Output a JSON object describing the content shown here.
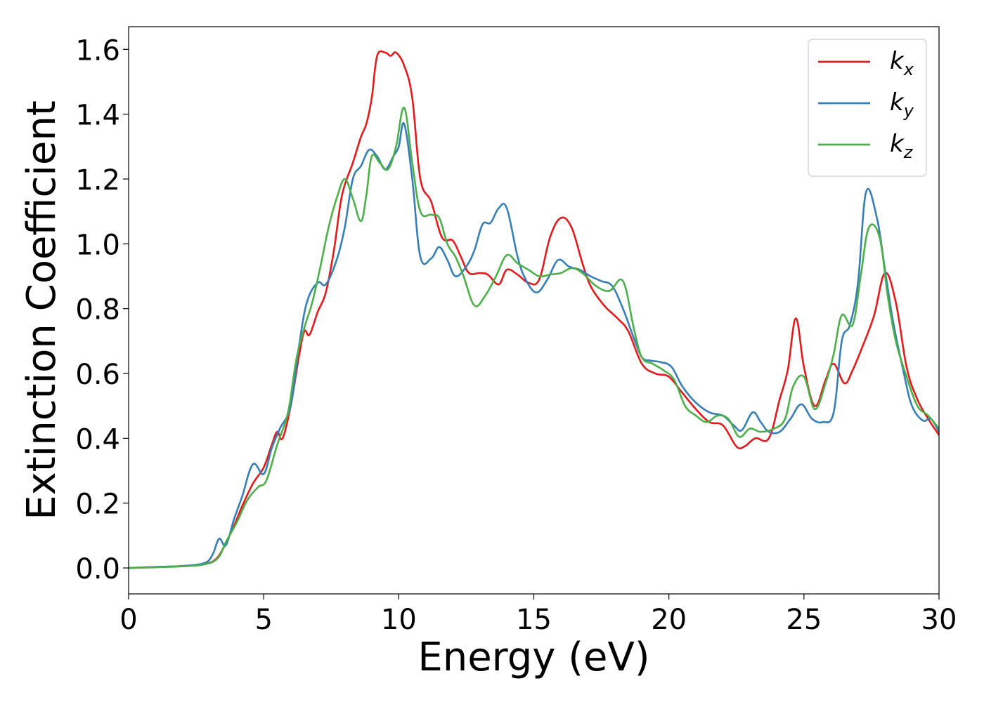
{
  "chart_data": {
    "type": "line",
    "title": "",
    "xlabel": "Energy (eV)",
    "ylabel": "Extinction Coefficient",
    "xlim": [
      0,
      30
    ],
    "ylim": [
      -0.08,
      1.67
    ],
    "xticks": [
      0,
      5,
      10,
      15,
      20,
      25,
      30
    ],
    "xtick_labels": [
      "0",
      "5",
      "10",
      "15",
      "20",
      "25",
      "30"
    ],
    "yticks": [
      0.0,
      0.2,
      0.4,
      0.6,
      0.8,
      1.0,
      1.2,
      1.4,
      1.6
    ],
    "ytick_labels": [
      "0.0",
      "0.2",
      "0.4",
      "0.6",
      "0.8",
      "1.0",
      "1.2",
      "1.4",
      "1.6"
    ],
    "grid": false,
    "legend_position": "top-right",
    "series": [
      {
        "name": "k_x",
        "legend_base": "k",
        "legend_sub": "x",
        "color": "#e41a1c",
        "points": [
          [
            0,
            0.0
          ],
          [
            1,
            0.003
          ],
          [
            2,
            0.006
          ],
          [
            2.8,
            0.013
          ],
          [
            3.2,
            0.025
          ],
          [
            3.5,
            0.06
          ],
          [
            3.9,
            0.13
          ],
          [
            4.2,
            0.19
          ],
          [
            4.6,
            0.26
          ],
          [
            5.0,
            0.31
          ],
          [
            5.3,
            0.38
          ],
          [
            5.5,
            0.42
          ],
          [
            5.7,
            0.4
          ],
          [
            6.0,
            0.5
          ],
          [
            6.3,
            0.65
          ],
          [
            6.5,
            0.73
          ],
          [
            6.7,
            0.72
          ],
          [
            7.0,
            0.79
          ],
          [
            7.3,
            0.85
          ],
          [
            7.6,
            0.98
          ],
          [
            7.9,
            1.15
          ],
          [
            8.3,
            1.25
          ],
          [
            8.6,
            1.33
          ],
          [
            8.8,
            1.37
          ],
          [
            9.0,
            1.45
          ],
          [
            9.2,
            1.58
          ],
          [
            9.5,
            1.59
          ],
          [
            9.7,
            1.58
          ],
          [
            9.9,
            1.59
          ],
          [
            10.2,
            1.55
          ],
          [
            10.5,
            1.45
          ],
          [
            10.8,
            1.2
          ],
          [
            11.2,
            1.13
          ],
          [
            11.6,
            1.02
          ],
          [
            12.0,
            1.01
          ],
          [
            12.3,
            0.96
          ],
          [
            12.6,
            0.91
          ],
          [
            13.0,
            0.91
          ],
          [
            13.3,
            0.905
          ],
          [
            13.7,
            0.875
          ],
          [
            14.0,
            0.92
          ],
          [
            14.4,
            0.905
          ],
          [
            14.8,
            0.88
          ],
          [
            15.2,
            0.89
          ],
          [
            15.6,
            1.02
          ],
          [
            16.0,
            1.08
          ],
          [
            16.4,
            1.05
          ],
          [
            16.8,
            0.94
          ],
          [
            17.1,
            0.87
          ],
          [
            17.6,
            0.81
          ],
          [
            18.1,
            0.77
          ],
          [
            18.5,
            0.73
          ],
          [
            19.0,
            0.63
          ],
          [
            19.5,
            0.6
          ],
          [
            20.0,
            0.59
          ],
          [
            20.5,
            0.54
          ],
          [
            21.0,
            0.49
          ],
          [
            21.5,
            0.45
          ],
          [
            22.0,
            0.44
          ],
          [
            22.5,
            0.375
          ],
          [
            22.8,
            0.375
          ],
          [
            23.2,
            0.4
          ],
          [
            23.7,
            0.4
          ],
          [
            24.1,
            0.52
          ],
          [
            24.4,
            0.61
          ],
          [
            24.7,
            0.77
          ],
          [
            25.0,
            0.62
          ],
          [
            25.4,
            0.5
          ],
          [
            25.8,
            0.58
          ],
          [
            26.1,
            0.63
          ],
          [
            26.5,
            0.57
          ],
          [
            26.8,
            0.61
          ],
          [
            27.2,
            0.69
          ],
          [
            27.6,
            0.78
          ],
          [
            28.0,
            0.91
          ],
          [
            28.4,
            0.82
          ],
          [
            28.8,
            0.62
          ],
          [
            29.2,
            0.52
          ],
          [
            29.6,
            0.46
          ],
          [
            30.0,
            0.41
          ]
        ]
      },
      {
        "name": "k_y",
        "legend_base": "k",
        "legend_sub": "y",
        "color": "#377eb8",
        "points": [
          [
            0,
            0.0
          ],
          [
            1,
            0.003
          ],
          [
            2,
            0.006
          ],
          [
            2.8,
            0.015
          ],
          [
            3.1,
            0.04
          ],
          [
            3.35,
            0.09
          ],
          [
            3.6,
            0.07
          ],
          [
            3.9,
            0.15
          ],
          [
            4.2,
            0.22
          ],
          [
            4.6,
            0.32
          ],
          [
            5.0,
            0.29
          ],
          [
            5.3,
            0.37
          ],
          [
            5.6,
            0.43
          ],
          [
            6.0,
            0.5
          ],
          [
            6.3,
            0.68
          ],
          [
            6.6,
            0.82
          ],
          [
            7.0,
            0.88
          ],
          [
            7.3,
            0.875
          ],
          [
            7.7,
            0.95
          ],
          [
            8.0,
            1.05
          ],
          [
            8.3,
            1.2
          ],
          [
            8.6,
            1.24
          ],
          [
            8.9,
            1.29
          ],
          [
            9.2,
            1.27
          ],
          [
            9.5,
            1.23
          ],
          [
            9.8,
            1.27
          ],
          [
            10.0,
            1.3
          ],
          [
            10.2,
            1.37
          ],
          [
            10.5,
            1.2
          ],
          [
            10.8,
            0.96
          ],
          [
            11.2,
            0.955
          ],
          [
            11.5,
            0.99
          ],
          [
            11.8,
            0.95
          ],
          [
            12.1,
            0.9
          ],
          [
            12.5,
            0.93
          ],
          [
            12.8,
            0.98
          ],
          [
            13.1,
            1.06
          ],
          [
            13.4,
            1.065
          ],
          [
            13.7,
            1.11
          ],
          [
            14.0,
            1.11
          ],
          [
            14.4,
            0.96
          ],
          [
            14.7,
            0.89
          ],
          [
            15.1,
            0.85
          ],
          [
            15.5,
            0.89
          ],
          [
            15.9,
            0.95
          ],
          [
            16.3,
            0.93
          ],
          [
            16.7,
            0.92
          ],
          [
            17.1,
            0.9
          ],
          [
            17.5,
            0.885
          ],
          [
            17.9,
            0.87
          ],
          [
            18.3,
            0.8
          ],
          [
            18.7,
            0.71
          ],
          [
            19.0,
            0.65
          ],
          [
            19.3,
            0.64
          ],
          [
            19.7,
            0.635
          ],
          [
            20.1,
            0.62
          ],
          [
            20.5,
            0.56
          ],
          [
            21.0,
            0.51
          ],
          [
            21.5,
            0.48
          ],
          [
            22.0,
            0.47
          ],
          [
            22.4,
            0.44
          ],
          [
            22.7,
            0.425
          ],
          [
            23.1,
            0.48
          ],
          [
            23.4,
            0.45
          ],
          [
            23.7,
            0.42
          ],
          [
            24.1,
            0.42
          ],
          [
            24.5,
            0.46
          ],
          [
            24.9,
            0.505
          ],
          [
            25.3,
            0.46
          ],
          [
            25.7,
            0.45
          ],
          [
            26.1,
            0.48
          ],
          [
            26.4,
            0.7
          ],
          [
            26.7,
            0.75
          ],
          [
            27.0,
            0.88
          ],
          [
            27.3,
            1.16
          ],
          [
            27.7,
            1.08
          ],
          [
            28.0,
            0.92
          ],
          [
            28.3,
            0.76
          ],
          [
            28.7,
            0.6
          ],
          [
            29.0,
            0.5
          ],
          [
            29.4,
            0.455
          ],
          [
            29.7,
            0.46
          ],
          [
            30.0,
            0.42
          ]
        ]
      },
      {
        "name": "k_z",
        "legend_base": "k",
        "legend_sub": "z",
        "color": "#4daf4a",
        "points": [
          [
            0,
            0.0
          ],
          [
            1,
            0.002
          ],
          [
            2,
            0.005
          ],
          [
            2.8,
            0.011
          ],
          [
            3.3,
            0.03
          ],
          [
            3.6,
            0.08
          ],
          [
            4.0,
            0.14
          ],
          [
            4.4,
            0.21
          ],
          [
            4.8,
            0.25
          ],
          [
            5.1,
            0.27
          ],
          [
            5.5,
            0.38
          ],
          [
            5.9,
            0.48
          ],
          [
            6.2,
            0.64
          ],
          [
            6.5,
            0.74
          ],
          [
            6.8,
            0.82
          ],
          [
            7.1,
            0.93
          ],
          [
            7.4,
            1.05
          ],
          [
            7.7,
            1.14
          ],
          [
            8.0,
            1.2
          ],
          [
            8.3,
            1.14
          ],
          [
            8.6,
            1.07
          ],
          [
            8.8,
            1.15
          ],
          [
            9.0,
            1.27
          ],
          [
            9.3,
            1.25
          ],
          [
            9.6,
            1.23
          ],
          [
            9.9,
            1.3
          ],
          [
            10.2,
            1.42
          ],
          [
            10.5,
            1.25
          ],
          [
            10.8,
            1.1
          ],
          [
            11.2,
            1.09
          ],
          [
            11.5,
            1.08
          ],
          [
            11.8,
            1.0
          ],
          [
            12.1,
            0.96
          ],
          [
            12.4,
            0.9
          ],
          [
            12.8,
            0.81
          ],
          [
            13.2,
            0.84
          ],
          [
            13.6,
            0.9
          ],
          [
            14.0,
            0.965
          ],
          [
            14.4,
            0.94
          ],
          [
            14.8,
            0.92
          ],
          [
            15.2,
            0.9
          ],
          [
            15.6,
            0.905
          ],
          [
            16.0,
            0.91
          ],
          [
            16.4,
            0.925
          ],
          [
            16.8,
            0.91
          ],
          [
            17.3,
            0.87
          ],
          [
            17.8,
            0.855
          ],
          [
            18.3,
            0.885
          ],
          [
            18.7,
            0.74
          ],
          [
            19.0,
            0.65
          ],
          [
            19.4,
            0.63
          ],
          [
            19.8,
            0.61
          ],
          [
            20.2,
            0.58
          ],
          [
            20.6,
            0.5
          ],
          [
            21.0,
            0.47
          ],
          [
            21.4,
            0.45
          ],
          [
            21.8,
            0.47
          ],
          [
            22.2,
            0.46
          ],
          [
            22.6,
            0.405
          ],
          [
            23.0,
            0.43
          ],
          [
            23.4,
            0.42
          ],
          [
            23.9,
            0.43
          ],
          [
            24.3,
            0.46
          ],
          [
            24.6,
            0.56
          ],
          [
            25.0,
            0.59
          ],
          [
            25.4,
            0.49
          ],
          [
            25.8,
            0.57
          ],
          [
            26.1,
            0.66
          ],
          [
            26.4,
            0.78
          ],
          [
            26.8,
            0.75
          ],
          [
            27.1,
            0.9
          ],
          [
            27.4,
            1.05
          ],
          [
            27.8,
            1.02
          ],
          [
            28.1,
            0.84
          ],
          [
            28.4,
            0.7
          ],
          [
            28.8,
            0.59
          ],
          [
            29.2,
            0.5
          ],
          [
            29.6,
            0.47
          ],
          [
            30.0,
            0.43
          ]
        ]
      }
    ]
  }
}
